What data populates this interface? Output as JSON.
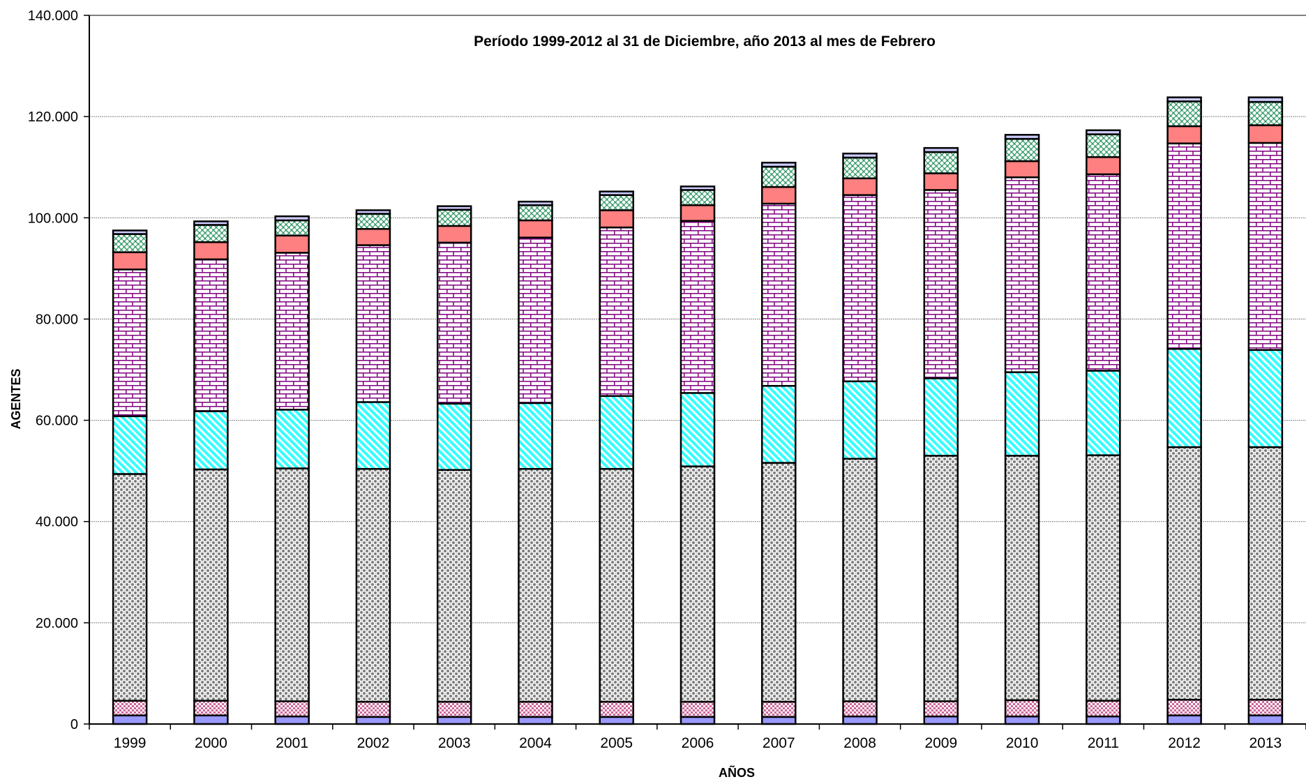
{
  "chart_data": {
    "type": "bar",
    "stacked": true,
    "title": "Período 1999-2012 al 31 de Diciembre, año 2013 al mes de Febrero",
    "xlabel": "AÑOS",
    "ylabel": "AGENTES",
    "ylim": [
      0,
      140000
    ],
    "yticks": [
      0,
      20000,
      40000,
      60000,
      80000,
      100000,
      120000,
      140000
    ],
    "ytick_labels": [
      "0",
      "20.000",
      "40.000",
      "60.000",
      "80.000",
      "100.000",
      "120.000",
      "140.000"
    ],
    "grid": true,
    "categories": [
      "1999",
      "2000",
      "2001",
      "2002",
      "2003",
      "2004",
      "2005",
      "2006",
      "2007",
      "2008",
      "2009",
      "2010",
      "2011",
      "2012",
      "2013"
    ],
    "series": [
      {
        "color": "#9999ff",
        "pattern": "solid",
        "values": [
          1700,
          1700,
          1500,
          1400,
          1400,
          1400,
          1400,
          1400,
          1400,
          1500,
          1500,
          1500,
          1500,
          1700,
          1700
        ]
      },
      {
        "color": "#cc6699",
        "pattern": "checker",
        "values": [
          2900,
          2900,
          3000,
          3000,
          3000,
          3000,
          3000,
          3000,
          3000,
          3000,
          3000,
          3200,
          3100,
          3100,
          3100
        ]
      },
      {
        "color": "#a0a0a0",
        "pattern": "dots",
        "values": [
          44800,
          45700,
          46000,
          46000,
          45800,
          46000,
          46000,
          46500,
          47200,
          47900,
          48500,
          48300,
          48500,
          49900,
          49900
        ]
      },
      {
        "color": "#33ffff",
        "pattern": "diagonal",
        "values": [
          11400,
          11500,
          11600,
          13200,
          13100,
          13000,
          14400,
          14500,
          15200,
          15300,
          15300,
          16500,
          16700,
          19400,
          19200
        ]
      },
      {
        "color": "#800080",
        "pattern": "brick",
        "values": [
          29000,
          30000,
          31000,
          31000,
          31800,
          32700,
          33300,
          34000,
          36000,
          36800,
          37200,
          38500,
          38800,
          40600,
          40900
        ]
      },
      {
        "color": "#ff8080",
        "pattern": "solid",
        "values": [
          3400,
          3400,
          3400,
          3200,
          3300,
          3400,
          3400,
          3100,
          3300,
          3300,
          3300,
          3200,
          3400,
          3400,
          3500
        ]
      },
      {
        "color": "#339966",
        "pattern": "weave",
        "values": [
          3600,
          3400,
          3000,
          3000,
          3200,
          3000,
          3000,
          3000,
          4000,
          4100,
          4200,
          4400,
          4500,
          4900,
          4600
        ]
      },
      {
        "color": "#ccccff",
        "pattern": "solid",
        "values": [
          700,
          700,
          800,
          700,
          700,
          700,
          700,
          700,
          800,
          800,
          800,
          800,
          800,
          800,
          900
        ]
      }
    ]
  }
}
